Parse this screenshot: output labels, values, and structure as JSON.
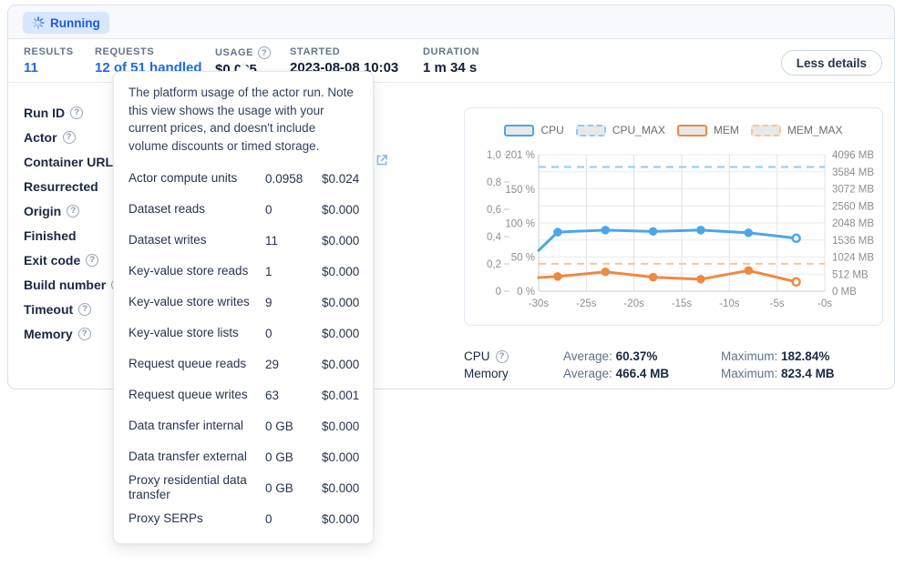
{
  "status": {
    "label": "Running"
  },
  "stats": {
    "results_label": "RESULTS",
    "results_value": "11",
    "requests_label": "REQUESTS",
    "requests_value": "12 of 51 handled",
    "usage_label": "USAGE",
    "usage_value": "$0.025",
    "started_label": "STARTED",
    "started_value": "2023-08-08 10:03",
    "duration_label": "DURATION",
    "duration_value": "1 m 34 s"
  },
  "actions": {
    "less_details": "Less details"
  },
  "icons": {
    "help": "?"
  },
  "details": {
    "rows": [
      {
        "label": "Run ID",
        "help": true
      },
      {
        "label": "Actor",
        "help": true
      },
      {
        "label": "Container URL",
        "help": true
      },
      {
        "label": "Resurrected",
        "help": false
      },
      {
        "label": "Origin",
        "help": true
      },
      {
        "label": "Finished",
        "help": false
      },
      {
        "label": "Exit code",
        "help": true
      },
      {
        "label": "Build number",
        "help": true
      },
      {
        "label": "Timeout",
        "help": true
      },
      {
        "label": "Memory",
        "help": true
      }
    ]
  },
  "usage_tooltip": {
    "description": "The platform usage of the actor run. Note this view shows the usage with your current prices, and doesn't include volume discounts or timed storage.",
    "rows": [
      {
        "label": "Actor compute units",
        "value": "0.0958",
        "price": "$0.024"
      },
      {
        "label": "Dataset reads",
        "value": "0",
        "price": "$0.000"
      },
      {
        "label": "Dataset writes",
        "value": "11",
        "price": "$0.000"
      },
      {
        "label": "Key-value store reads",
        "value": "1",
        "price": "$0.000"
      },
      {
        "label": "Key-value store writes",
        "value": "9",
        "price": "$0.000"
      },
      {
        "label": "Key-value store lists",
        "value": "0",
        "price": "$0.000"
      },
      {
        "label": "Request queue reads",
        "value": "29",
        "price": "$0.000"
      },
      {
        "label": "Request queue writes",
        "value": "63",
        "price": "$0.001"
      },
      {
        "label": "Data transfer internal",
        "value": "0 GB",
        "price": "$0.000"
      },
      {
        "label": "Data transfer external",
        "value": "0 GB",
        "price": "$0.000"
      },
      {
        "label": "Proxy residential data transfer",
        "value": "0 GB",
        "price": "$0.000"
      },
      {
        "label": "Proxy SERPs",
        "value": "0",
        "price": "$0.000"
      }
    ]
  },
  "metrics": {
    "cpu": {
      "label": "CPU",
      "average_label": "Average:",
      "average": "60.37%",
      "maximum_label": "Maximum:",
      "maximum": "182.84%"
    },
    "memory": {
      "label": "Memory",
      "average_label": "Average:",
      "average": "466.4 MB",
      "maximum_label": "Maximum:",
      "maximum": "823.4 MB"
    }
  },
  "chart_data": {
    "type": "line",
    "x": [
      -30,
      -28,
      -23,
      -18,
      -13,
      -8,
      -3
    ],
    "x_tick_values": [
      -30,
      -25,
      -20,
      -15,
      -10,
      -5,
      0
    ],
    "x_tick_labels": [
      "-30s",
      "-25s",
      "-20s",
      "-15s",
      "-10s",
      "-5s",
      "-0s"
    ],
    "series": [
      {
        "name": "CPU",
        "color": "#4aa6e8",
        "style": "solid",
        "axis": "percent",
        "values": [
          60,
          87,
          90,
          88,
          90,
          86,
          78
        ]
      },
      {
        "name": "CPU_MAX",
        "color": "#93c9f1",
        "style": "dashed",
        "axis": "percent",
        "value": 182.84
      },
      {
        "name": "MEM",
        "color": "#ef8942",
        "style": "solid",
        "axis": "mb",
        "values": [
          410,
          440,
          580,
          420,
          360,
          620,
          280
        ]
      },
      {
        "name": "MEM_MAX",
        "color": "#f6c49e",
        "style": "dashed",
        "axis": "mb",
        "value": 823.4
      }
    ],
    "axes": {
      "outer_left": {
        "labels": [
          "1,0",
          "0,8",
          "0,6",
          "0,4",
          "0,2",
          "0"
        ],
        "range": [
          0,
          1
        ]
      },
      "inner_left": {
        "labels": [
          "201 %",
          "150 %",
          "100 %",
          "50 %",
          "0 %"
        ],
        "values": [
          201,
          150,
          100,
          50,
          0
        ],
        "max": 201
      },
      "right": {
        "labels": [
          "4096 MB",
          "3584 MB",
          "3072 MB",
          "2560 MB",
          "2048 MB",
          "1536 MB",
          "1024 MB",
          "512 MB",
          "0 MB"
        ],
        "max": 4096
      }
    },
    "legend": [
      {
        "label": "CPU",
        "color": "#4aa6e8",
        "dashed": false
      },
      {
        "label": "CPU_MAX",
        "color": "#93c9f1",
        "dashed": true
      },
      {
        "label": "MEM",
        "color": "#ef8942",
        "dashed": false
      },
      {
        "label": "MEM_MAX",
        "color": "#f6c49e",
        "dashed": true
      }
    ],
    "grid": true,
    "legend_position": "top",
    "title": ""
  }
}
